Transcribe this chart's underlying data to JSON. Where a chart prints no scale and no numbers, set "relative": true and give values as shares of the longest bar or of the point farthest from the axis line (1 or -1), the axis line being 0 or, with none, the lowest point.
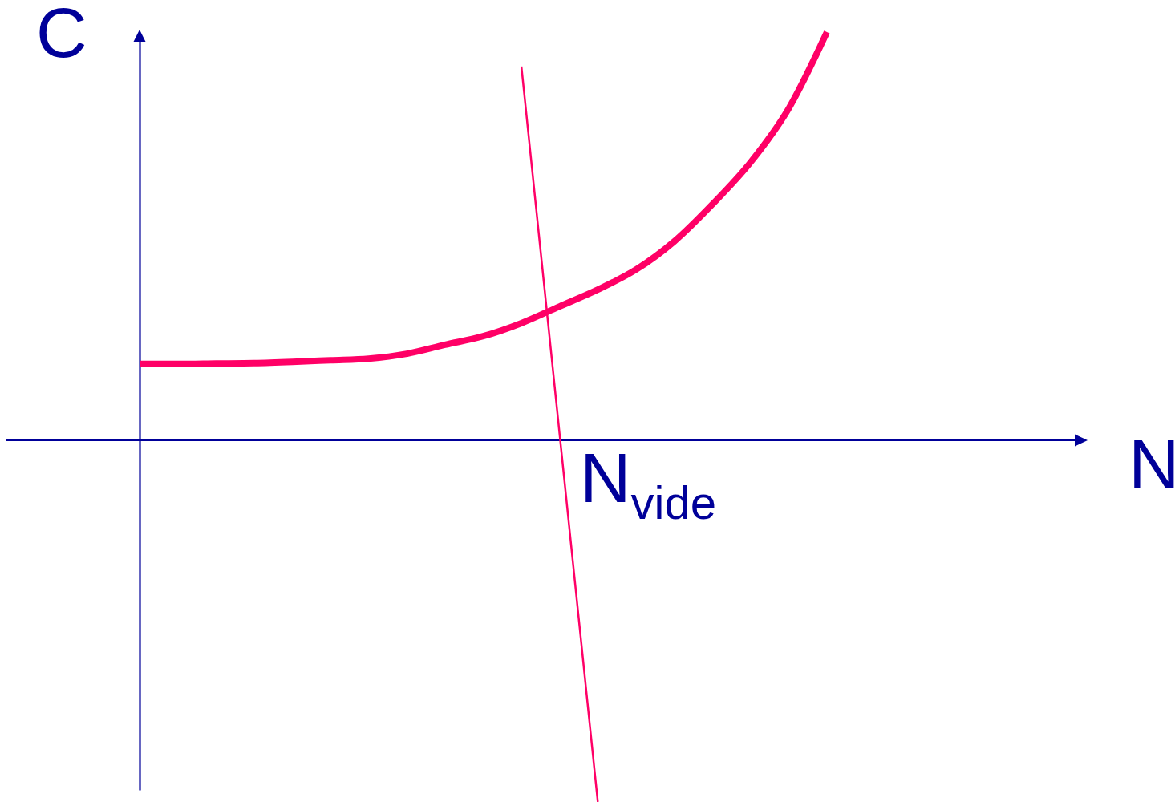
{
  "chart_data": {
    "type": "line",
    "relative": true,
    "xlabel": "N",
    "ylabel": "C",
    "categories": [
      null,
      null,
      null,
      null,
      null,
      null,
      null,
      null,
      null,
      null,
      null,
      null,
      null,
      null,
      null,
      null,
      null,
      null,
      null
    ],
    "series": [
      {
        "color": "#ff0066",
        "values": [
          0.187,
          0.187,
          0.188,
          0.189,
          0.192,
          0.196,
          0.2,
          0.212,
          0.234,
          0.255,
          0.287,
          0.328,
          0.369,
          0.418,
          0.487,
          0.578,
          0.681,
          0.813,
          1
        ]
      },
      {
        "color": "#ff0066",
        "values": [
          null,
          null,
          null,
          null,
          null,
          null,
          null,
          null,
          null,
          null,
          0.916,
          0.015,
          -0.886,
          null,
          null,
          null,
          null,
          null,
          null
        ]
      }
    ],
    "ref_lines": [
      {
        "axis": "y",
        "value": 0,
        "color": "#000099"
      }
    ],
    "annotations": [
      "N$_{vide}$"
    ]
  }
}
